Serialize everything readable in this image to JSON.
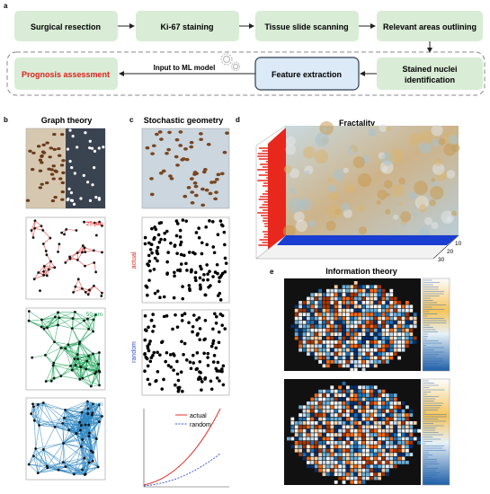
{
  "panel_labels": {
    "a": "a",
    "b": "b",
    "c": "c",
    "d": "d",
    "e": "e"
  },
  "workflow": {
    "steps": [
      "Surgical resection",
      "Ki-67 staining",
      "Tissue slide scanning",
      "Relevant areas outlining"
    ],
    "nuclei_step_line1": "Stained nuclei",
    "nuclei_step_line2": "identification",
    "feature_step": "Feature extraction",
    "prognosis_step": "Prognosis assessment",
    "ml_label": "Input to ML model",
    "colors": {
      "box_fill": "#d9ecd6",
      "feature_fill": "#dce9f6",
      "feature_stroke": "#2c3e50",
      "prognosis_text": "#e0201b"
    }
  },
  "graph_theory": {
    "title": "Graph theory",
    "scales": [
      "25 µm",
      "50 µm",
      "75 µm"
    ],
    "scale_colors": [
      "#e0201b",
      "#1fa35a",
      "#2e86c1"
    ]
  },
  "stochastic_geometry": {
    "title": "Stochastic geometry",
    "actual_label": "actual",
    "random_label": "random",
    "legend": [
      "actual",
      "random"
    ],
    "legend_colors": [
      "#e0201b",
      "#2e4bd6"
    ]
  },
  "fractality": {
    "title": "Fractality",
    "axis_ticks": [
      "10",
      "20",
      "30"
    ]
  },
  "information_theory": {
    "title": "Information theory"
  }
}
